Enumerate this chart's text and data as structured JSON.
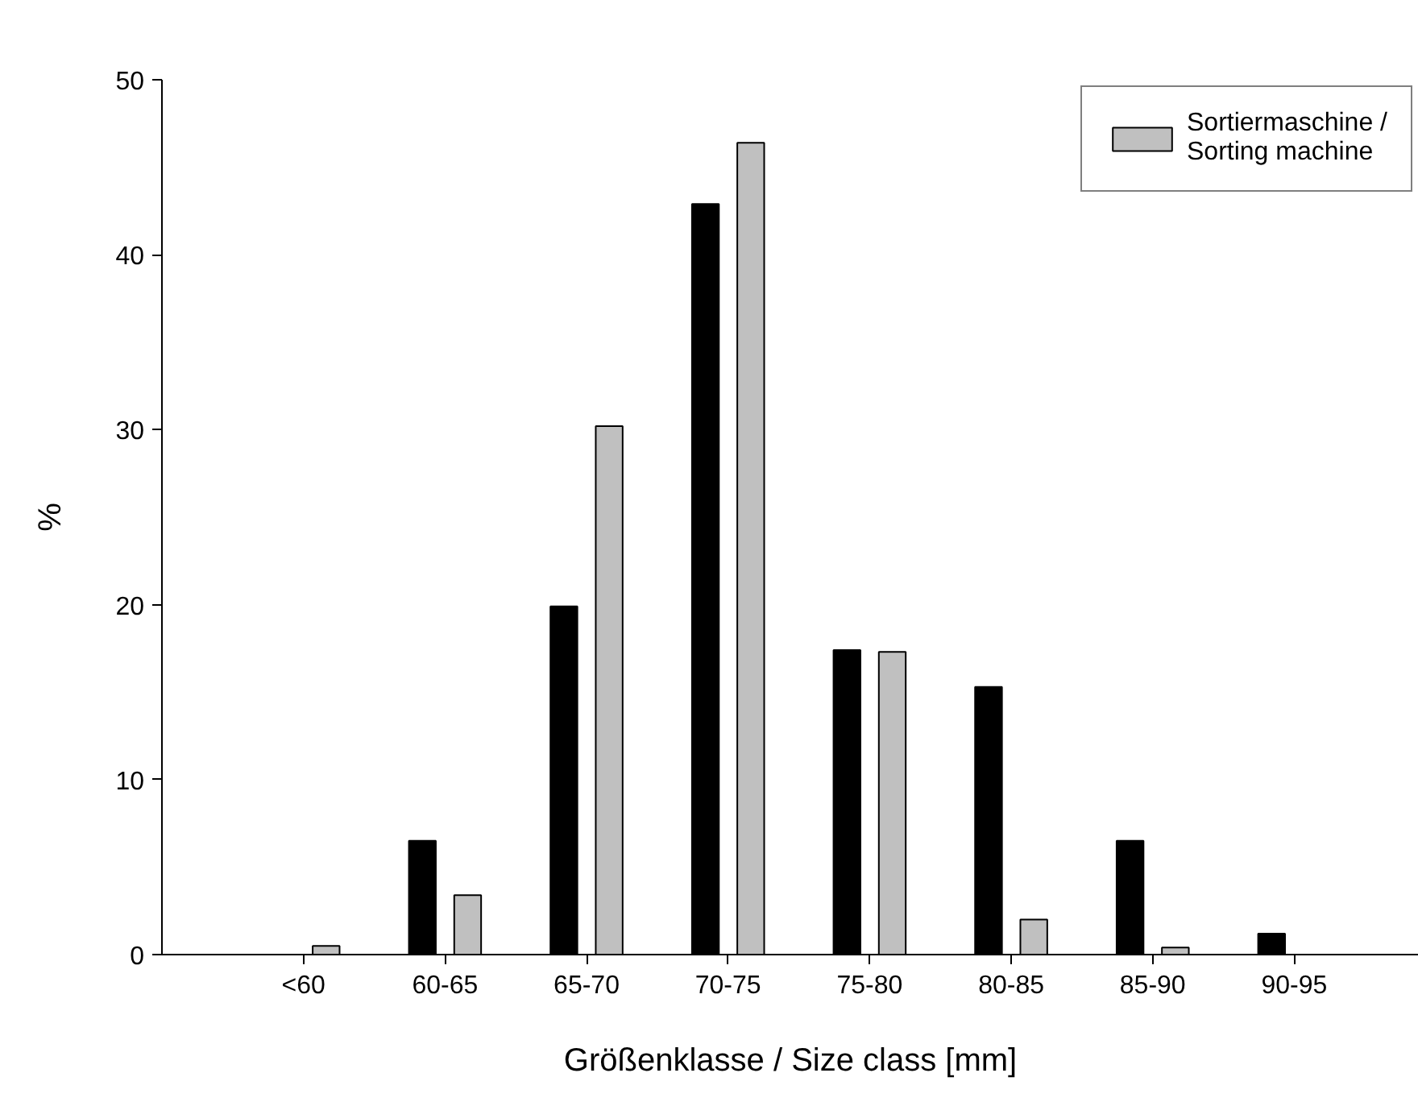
{
  "chart_data": {
    "type": "bar",
    "xlabel": "Größenklasse / Size class [mm]",
    "ylabel": "%",
    "categories": [
      "<60",
      "60-65",
      "65-70",
      "70-75",
      "75-80",
      "80-85",
      "85-90",
      "90-95"
    ],
    "series": [
      {
        "color": "#000000",
        "values": [
          null,
          6.5,
          19.9,
          42.9,
          17.4,
          15.3,
          6.5,
          1.2
        ]
      },
      {
        "name": "Sortiermaschine /\nSorting machine",
        "color": "#c0c0c0",
        "values": [
          0.5,
          3.4,
          30.2,
          46.4,
          17.3,
          2.0,
          0.4,
          null
        ]
      }
    ],
    "ylim": [
      0,
      50
    ],
    "yticks": [
      0,
      10,
      20,
      30,
      40,
      50
    ],
    "grid": false,
    "legend": "top right"
  }
}
